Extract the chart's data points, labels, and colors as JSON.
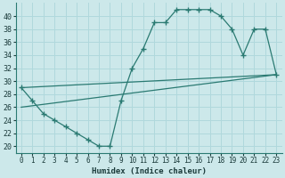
{
  "xlabel": "Humidex (Indice chaleur)",
  "bg_color": "#cce8ea",
  "grid_color": "#b0d8dc",
  "line_color": "#2a7a72",
  "xlim": [
    -0.5,
    23.5
  ],
  "ylim": [
    19,
    42
  ],
  "xticks": [
    0,
    1,
    2,
    3,
    4,
    5,
    6,
    7,
    8,
    9,
    10,
    11,
    12,
    13,
    14,
    15,
    16,
    17,
    18,
    19,
    20,
    21,
    22,
    23
  ],
  "yticks": [
    20,
    22,
    24,
    26,
    28,
    30,
    32,
    34,
    36,
    38,
    40
  ],
  "curve_x": [
    0,
    1,
    2,
    3,
    4,
    5,
    6,
    7,
    8,
    9,
    10,
    11,
    12,
    13,
    14,
    15,
    16,
    17,
    18,
    19,
    20,
    21,
    22,
    23
  ],
  "curve_y": [
    29,
    27,
    25,
    24,
    23,
    22,
    21,
    20,
    20,
    27,
    32,
    35,
    39,
    39,
    41,
    41,
    41,
    41,
    40,
    38,
    34,
    38,
    38,
    31
  ],
  "line1_x": [
    0,
    23
  ],
  "line1_y": [
    29,
    31
  ],
  "line2_x": [
    0,
    23
  ],
  "line2_y": [
    26,
    31
  ],
  "xlabel_fontsize": 6.5,
  "tick_fontsize": 5.5
}
